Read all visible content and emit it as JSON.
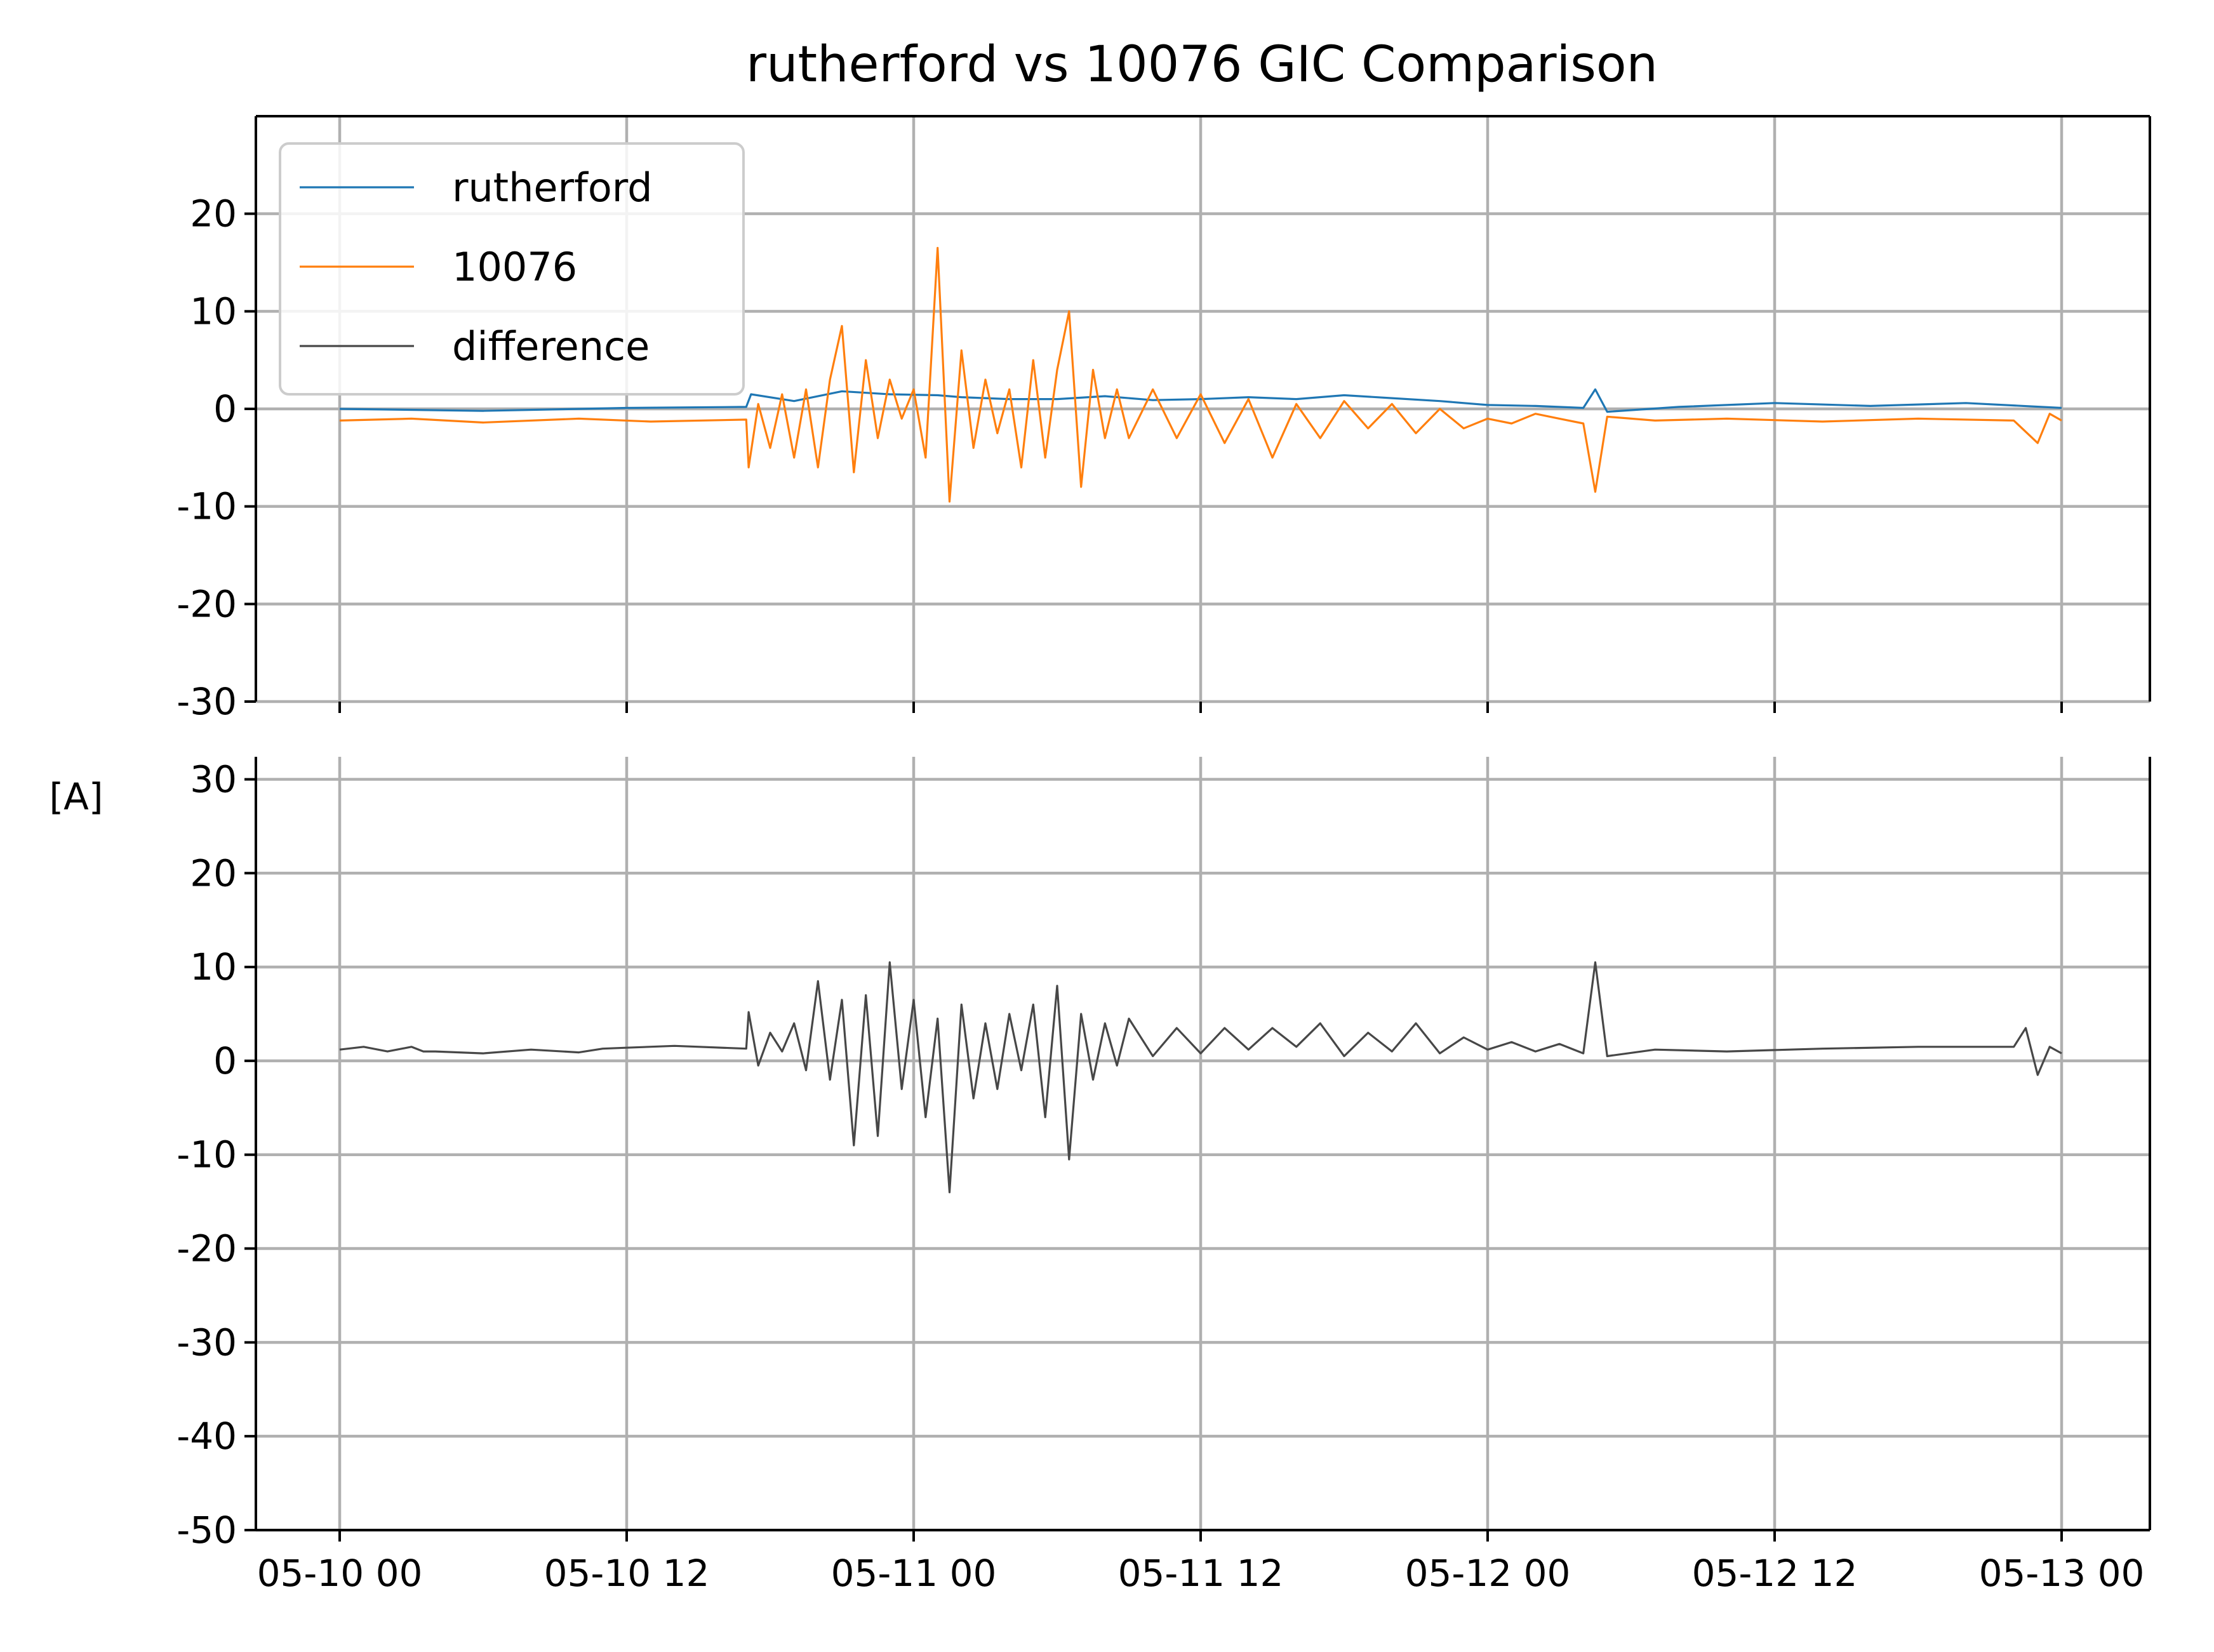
{
  "chart_data": {
    "type": "line",
    "title": "rutherford vs 10076 GIC Comparison",
    "ylabel": "[A]",
    "xlabel": "",
    "grid": true,
    "legend": {
      "placement": "top-left",
      "panel": "top"
    },
    "x_ticks": [
      "05-10 00",
      "05-10 12",
      "05-11 00",
      "05-11 12",
      "05-12 00",
      "05-12 12",
      "05-13 00"
    ],
    "xlim": [
      "05-09 21",
      "05-13 03"
    ],
    "panels": [
      {
        "id": "top",
        "ylim": [
          -30,
          30
        ],
        "y_ticks": [
          "20",
          "10",
          "0",
          "-10",
          "-20",
          "-30"
        ],
        "series": [
          {
            "name": "rutherford",
            "color": "#1f77b4",
            "x_hours": [
              0,
              6,
              12,
              17,
              17.2,
              19,
              21,
              23,
              25,
              26,
              28,
              30,
              32,
              34,
              36,
              38,
              40,
              42,
              44,
              46,
              48,
              50,
              52,
              52.5,
              53,
              56,
              60,
              64,
              68,
              72
            ],
            "y": [
              0,
              -0.2,
              0.1,
              0.2,
              1.5,
              0.8,
              1.8,
              1.5,
              1.4,
              1.2,
              1.0,
              1.0,
              1.3,
              0.9,
              1.0,
              1.2,
              1.0,
              1.4,
              1.1,
              0.8,
              0.4,
              0.3,
              0.1,
              2.0,
              -0.3,
              0.2,
              0.6,
              0.3,
              0.6,
              0.1
            ]
          },
          {
            "name": "10076",
            "color": "#ff7f0e",
            "x_hours": [
              0,
              3,
              6,
              10,
              13,
              17,
              17.1,
              17.5,
              18,
              18.5,
              19,
              19.5,
              20,
              20.5,
              21,
              21.5,
              22,
              22.5,
              23,
              23.5,
              24,
              24.5,
              25,
              25.5,
              26,
              26.5,
              27,
              27.5,
              28,
              28.5,
              29,
              29.5,
              30,
              30.5,
              31,
              31.5,
              32,
              32.5,
              33,
              34,
              35,
              36,
              37,
              38,
              39,
              40,
              41,
              42,
              43,
              44,
              45,
              46,
              47,
              48,
              49,
              50,
              51,
              52,
              52.5,
              53,
              55,
              58,
              62,
              66,
              70,
              71,
              71.5,
              72
            ],
            "y": [
              -1.2,
              -1.0,
              -1.4,
              -1.0,
              -1.3,
              -1.1,
              -6.0,
              0.5,
              -4.0,
              1.5,
              -5.0,
              2.0,
              -6.0,
              3.0,
              8.5,
              -6.5,
              5.0,
              -3.0,
              3.0,
              -1.0,
              2.0,
              -5.0,
              16.5,
              -9.5,
              6.0,
              -4.0,
              3.0,
              -2.5,
              2.0,
              -6.0,
              5.0,
              -5.0,
              4.0,
              10.0,
              -8.0,
              4.0,
              -3.0,
              2.0,
              -3.0,
              2.0,
              -3.0,
              1.5,
              -3.5,
              1.0,
              -5.0,
              0.5,
              -3.0,
              0.8,
              -2.0,
              0.5,
              -2.5,
              0.0,
              -2.0,
              -1.0,
              -1.5,
              -0.5,
              -1.0,
              -1.5,
              -8.5,
              -0.8,
              -1.2,
              -1.0,
              -1.3,
              -1.0,
              -1.2,
              -3.5,
              -0.5,
              -1.2
            ]
          }
        ]
      },
      {
        "id": "bottom",
        "ylim": [
          -50,
          30
        ],
        "y_ticks": [
          "30",
          "20",
          "10",
          "0",
          "-10",
          "-20",
          "-30",
          "-40",
          "-50"
        ],
        "series": [
          {
            "name": "difference",
            "color": "#474747",
            "x_hours": [
              0,
              1,
              2,
              3,
              3.5,
              4,
              6,
              8,
              10,
              11,
              12,
              14,
              17,
              17.1,
              17.5,
              18,
              18.5,
              19,
              19.5,
              20,
              20.5,
              21,
              21.5,
              22,
              22.5,
              23,
              23.5,
              24,
              24.5,
              25,
              25.5,
              26,
              26.5,
              27,
              27.5,
              28,
              28.5,
              29,
              29.5,
              30,
              30.5,
              31,
              31.5,
              32,
              32.5,
              33,
              34,
              35,
              36,
              37,
              38,
              39,
              40,
              41,
              42,
              43,
              44,
              45,
              46,
              47,
              48,
              49,
              50,
              51,
              52,
              52.5,
              53,
              55,
              58,
              62,
              66,
              70,
              70.5,
              71,
              71.5,
              72
            ],
            "y": [
              1.2,
              1.5,
              1.0,
              1.5,
              1.0,
              1.0,
              0.8,
              1.2,
              0.9,
              1.3,
              1.4,
              1.6,
              1.3,
              5.2,
              -0.5,
              3.0,
              1.0,
              4.0,
              -1.0,
              8.5,
              -2.0,
              6.5,
              -9.0,
              7.0,
              -8.0,
              10.5,
              -3.0,
              6.5,
              -6.0,
              4.5,
              -14.0,
              6.0,
              -4.0,
              4.0,
              -3.0,
              5.0,
              -1.0,
              6.0,
              -6.0,
              8.0,
              -10.5,
              5.0,
              -2.0,
              4.0,
              -0.5,
              4.5,
              0.5,
              3.5,
              0.8,
              3.5,
              1.2,
              3.5,
              1.5,
              4.0,
              0.5,
              3.0,
              1.0,
              4.0,
              0.8,
              2.5,
              1.2,
              2.0,
              1.0,
              1.8,
              0.8,
              10.5,
              0.5,
              1.2,
              1.0,
              1.3,
              1.5,
              1.5,
              3.5,
              -1.5,
              1.5,
              0.8
            ]
          }
        ]
      }
    ]
  }
}
